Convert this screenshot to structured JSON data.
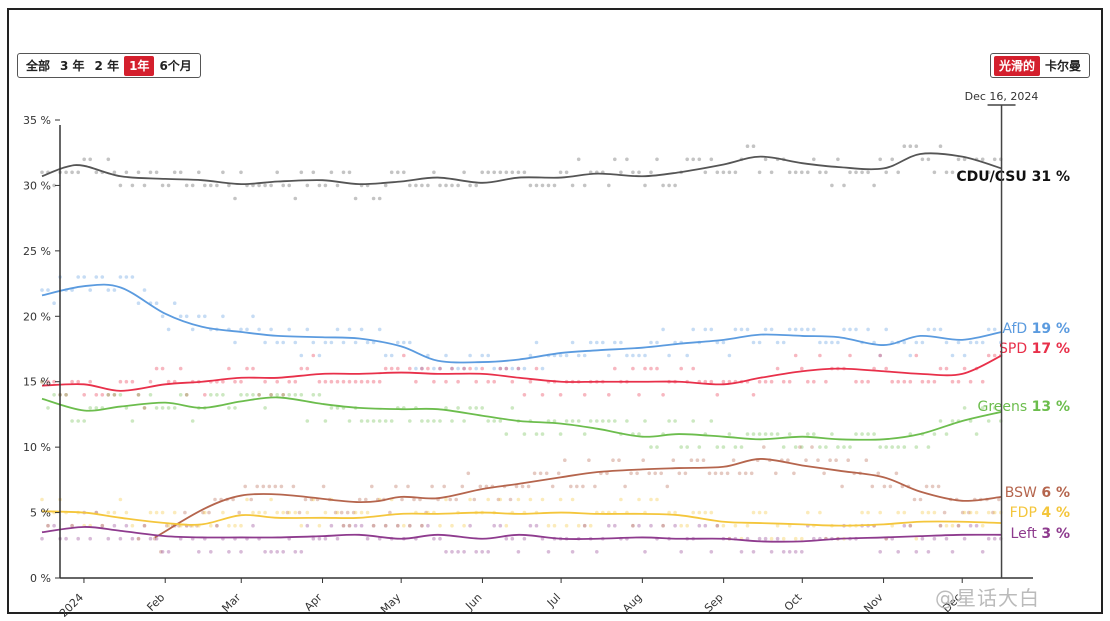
{
  "controls": {
    "range_buttons": [
      "全部",
      "3 年",
      "2 年",
      "1年",
      "6个月"
    ],
    "range_active": "1年",
    "style_buttons": [
      "光滑的",
      "卡尔曼"
    ],
    "style_active": "光滑的"
  },
  "watermark": "@星话大白",
  "chart_data": {
    "type": "line",
    "title": "",
    "xlabel": "",
    "ylabel": "",
    "ylim": [
      0,
      35
    ],
    "y_ticks": [
      "0 %",
      "5 %",
      "10 %",
      "15 %",
      "20 %",
      "25 %",
      "30 %",
      "35 %"
    ],
    "x_ticks": [
      "2024",
      "Feb",
      "Mar",
      "Apr",
      "May",
      "Jun",
      "Jul",
      "Aug",
      "Sep",
      "Oct",
      "Nov",
      "Dec"
    ],
    "xlim": [
      "2023-12-16",
      "2024-12-28"
    ],
    "cursor_date_label": "Dec 16, 2024",
    "cursor_date": "2024-12-16",
    "grid": false,
    "series": [
      {
        "name": "CDU/CSU",
        "end_label": "31 %",
        "color": "#555555",
        "x": [
          "2023-12-16",
          "2023-12-25",
          "2024-01-01",
          "2024-01-15",
          "2024-02-01",
          "2024-02-15",
          "2024-03-01",
          "2024-03-15",
          "2024-04-01",
          "2024-04-15",
          "2024-05-01",
          "2024-05-15",
          "2024-06-01",
          "2024-06-15",
          "2024-07-01",
          "2024-07-15",
          "2024-08-01",
          "2024-08-15",
          "2024-09-01",
          "2024-09-15",
          "2024-10-01",
          "2024-10-15",
          "2024-11-01",
          "2024-11-15",
          "2024-12-01",
          "2024-12-16"
        ],
        "values": [
          30.7,
          31.4,
          31.5,
          30.7,
          30.5,
          30.4,
          30.1,
          30.3,
          30.4,
          30.1,
          30.3,
          30.6,
          30.2,
          30.6,
          30.6,
          30.9,
          30.7,
          31.0,
          31.6,
          32.2,
          31.7,
          31.4,
          31.3,
          32.4,
          32.2,
          31.3
        ]
      },
      {
        "name": "AfD",
        "end_label": "19 %",
        "color": "#5b9bdf",
        "x": [
          "2023-12-16",
          "2024-01-01",
          "2024-01-15",
          "2024-02-01",
          "2024-02-15",
          "2024-03-01",
          "2024-03-15",
          "2024-04-01",
          "2024-04-15",
          "2024-05-01",
          "2024-05-15",
          "2024-06-01",
          "2024-06-15",
          "2024-07-01",
          "2024-07-15",
          "2024-08-01",
          "2024-08-15",
          "2024-09-01",
          "2024-09-15",
          "2024-10-01",
          "2024-10-15",
          "2024-11-01",
          "2024-11-15",
          "2024-12-01",
          "2024-12-16"
        ],
        "values": [
          21.6,
          22.3,
          22.2,
          20.2,
          19.2,
          18.8,
          18.5,
          18.4,
          18.3,
          17.7,
          16.6,
          16.5,
          16.7,
          17.2,
          17.4,
          17.6,
          17.9,
          18.2,
          18.6,
          18.5,
          18.4,
          17.8,
          18.5,
          18.2,
          18.8
        ]
      },
      {
        "name": "SPD",
        "end_label": "17 %",
        "color": "#e8304a",
        "x": [
          "2023-12-16",
          "2024-01-01",
          "2024-01-15",
          "2024-02-01",
          "2024-02-15",
          "2024-03-01",
          "2024-03-15",
          "2024-04-01",
          "2024-04-15",
          "2024-05-01",
          "2024-05-15",
          "2024-06-01",
          "2024-06-15",
          "2024-07-01",
          "2024-07-15",
          "2024-08-01",
          "2024-08-15",
          "2024-09-01",
          "2024-09-15",
          "2024-10-01",
          "2024-10-15",
          "2024-11-01",
          "2024-11-15",
          "2024-12-01",
          "2024-12-16"
        ],
        "values": [
          14.7,
          14.8,
          14.3,
          14.8,
          15.0,
          15.3,
          15.3,
          15.6,
          15.6,
          15.7,
          15.6,
          15.6,
          15.3,
          15.0,
          15.0,
          15.0,
          15.0,
          14.8,
          15.3,
          15.8,
          16.0,
          15.8,
          15.6,
          15.6,
          17.0
        ]
      },
      {
        "name": "Greens",
        "end_label": "13 %",
        "color": "#6cbd4d",
        "x": [
          "2023-12-16",
          "2024-01-01",
          "2024-01-15",
          "2024-02-01",
          "2024-02-15",
          "2024-03-01",
          "2024-03-15",
          "2024-04-01",
          "2024-04-15",
          "2024-05-01",
          "2024-05-15",
          "2024-06-01",
          "2024-06-15",
          "2024-07-01",
          "2024-07-15",
          "2024-08-01",
          "2024-08-15",
          "2024-09-01",
          "2024-09-15",
          "2024-10-01",
          "2024-10-15",
          "2024-11-01",
          "2024-11-15",
          "2024-12-01",
          "2024-12-16"
        ],
        "values": [
          13.7,
          12.8,
          13.1,
          13.4,
          13.0,
          13.5,
          13.8,
          13.3,
          13.0,
          12.9,
          12.9,
          12.4,
          12.0,
          11.8,
          11.4,
          10.8,
          11.0,
          10.8,
          10.6,
          10.8,
          10.6,
          10.6,
          11.0,
          12.0,
          12.7
        ]
      },
      {
        "name": "BSW",
        "end_label": "6 %",
        "color": "#b5654d",
        "x": [
          "2024-01-28",
          "2024-03-01",
          "2024-04-15",
          "2024-05-01",
          "2024-05-15",
          "2024-06-01",
          "2024-06-15",
          "2024-07-01",
          "2024-07-15",
          "2024-08-01",
          "2024-08-15",
          "2024-09-01",
          "2024-09-15",
          "2024-10-01",
          "2024-10-15",
          "2024-11-01",
          "2024-11-15",
          "2024-12-01",
          "2024-12-16"
        ],
        "values": [
          3.1,
          6.3,
          5.8,
          6.2,
          6.1,
          6.8,
          7.2,
          7.7,
          8.1,
          8.3,
          8.4,
          8.5,
          9.1,
          8.6,
          8.2,
          7.7,
          6.6,
          5.9,
          6.2
        ]
      },
      {
        "name": "FDP",
        "end_label": "4 %",
        "color": "#f4c63c",
        "x": [
          "2023-12-16",
          "2024-01-01",
          "2024-01-15",
          "2024-02-01",
          "2024-02-15",
          "2024-03-01",
          "2024-03-15",
          "2024-04-01",
          "2024-04-15",
          "2024-05-01",
          "2024-05-15",
          "2024-06-01",
          "2024-06-15",
          "2024-07-01",
          "2024-07-15",
          "2024-08-01",
          "2024-08-15",
          "2024-09-01",
          "2024-09-15",
          "2024-10-01",
          "2024-10-15",
          "2024-11-01",
          "2024-11-15",
          "2024-12-01",
          "2024-12-16"
        ],
        "values": [
          5.1,
          5.0,
          4.6,
          4.2,
          4.1,
          4.8,
          4.6,
          4.6,
          4.6,
          4.9,
          4.9,
          5.0,
          4.9,
          5.0,
          4.9,
          4.9,
          4.8,
          4.3,
          4.2,
          4.1,
          4.0,
          4.1,
          4.3,
          4.3,
          4.2
        ]
      },
      {
        "name": "Left",
        "end_label": "3 %",
        "color": "#8e3b8e",
        "x": [
          "2023-12-16",
          "2024-01-01",
          "2024-01-15",
          "2024-02-01",
          "2024-02-15",
          "2024-03-01",
          "2024-03-15",
          "2024-04-01",
          "2024-04-15",
          "2024-05-01",
          "2024-05-15",
          "2024-06-01",
          "2024-06-15",
          "2024-07-01",
          "2024-07-15",
          "2024-08-01",
          "2024-08-15",
          "2024-09-01",
          "2024-09-15",
          "2024-10-01",
          "2024-10-15",
          "2024-11-01",
          "2024-11-15",
          "2024-12-01",
          "2024-12-16"
        ],
        "values": [
          3.5,
          3.9,
          3.6,
          3.2,
          3.1,
          3.1,
          3.1,
          3.2,
          3.3,
          3.0,
          3.3,
          3.0,
          3.3,
          3.0,
          3.0,
          3.1,
          3.0,
          3.0,
          2.8,
          2.8,
          3.0,
          3.1,
          3.2,
          3.3,
          3.3
        ]
      }
    ]
  }
}
